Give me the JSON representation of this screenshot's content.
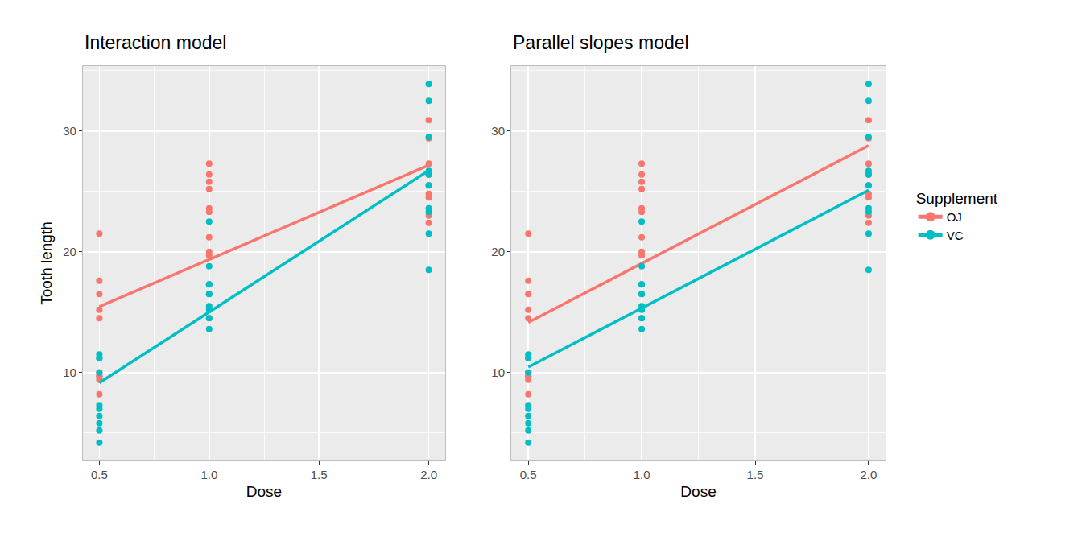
{
  "chart_data": [
    {
      "type": "scatter",
      "title": "Interaction model",
      "x_label": "Dose",
      "y_label": "Tooth length",
      "legend_title": "Supplement",
      "grid": true,
      "marker": "circle",
      "line_style": "solid",
      "xlim": [
        0.425,
        2.075
      ],
      "xticks": [
        {
          "value": 0.5,
          "label": "0.5"
        },
        {
          "value": 1.0,
          "label": "1.0"
        },
        {
          "value": 1.5,
          "label": "1.5"
        },
        {
          "value": 2.0,
          "label": "2.0"
        }
      ],
      "ylim": [
        2.715,
        35.385
      ],
      "yticks": [
        10,
        20,
        30
      ],
      "series": [
        {
          "name": "OJ",
          "color": "#F8766D",
          "x": [
            0.5,
            0.5,
            0.5,
            0.5,
            0.5,
            0.5,
            0.5,
            0.5,
            0.5,
            0.5,
            1,
            1,
            1,
            1,
            1,
            1,
            1,
            1,
            1,
            1,
            2,
            2,
            2,
            2,
            2,
            2,
            2,
            2,
            2,
            2
          ],
          "values": [
            15.2,
            21.5,
            17.6,
            9.7,
            14.5,
            10,
            8.2,
            9.4,
            16.5,
            9.7,
            19.7,
            23.3,
            23.6,
            26.4,
            20,
            25.2,
            25.8,
            21.2,
            14.5,
            27.3,
            25.5,
            26.4,
            22.4,
            24.5,
            24.8,
            30.9,
            26.4,
            27.3,
            29.4,
            23
          ],
          "fit_x": [
            0.5,
            2
          ],
          "fit_values": [
            15.46,
            27.17
          ]
        },
        {
          "name": "VC",
          "color": "#00BFC4",
          "x": [
            0.5,
            0.5,
            0.5,
            0.5,
            0.5,
            0.5,
            0.5,
            0.5,
            0.5,
            0.5,
            1,
            1,
            1,
            1,
            1,
            1,
            1,
            1,
            1,
            1,
            2,
            2,
            2,
            2,
            2,
            2,
            2,
            2,
            2,
            2
          ],
          "values": [
            4.2,
            11.5,
            7.3,
            5.8,
            6.4,
            10,
            11.2,
            11.2,
            5.2,
            7,
            16.5,
            16.5,
            15.2,
            17.3,
            22.5,
            17.3,
            13.6,
            14.5,
            18.8,
            15.5,
            23.6,
            18.5,
            33.9,
            25.5,
            26.4,
            32.5,
            26.7,
            21.5,
            23.3,
            29.5
          ],
          "fit_x": [
            0.5,
            2
          ],
          "fit_values": [
            9.15,
            26.73
          ]
        }
      ]
    },
    {
      "type": "scatter",
      "title": "Parallel slopes model",
      "x_label": "Dose",
      "grid": true,
      "marker": "circle",
      "line_style": "solid",
      "xlim": [
        0.425,
        2.075
      ],
      "xticks": [
        {
          "value": 0.5,
          "label": "0.5"
        },
        {
          "value": 1.0,
          "label": "1.0"
        },
        {
          "value": 1.5,
          "label": "1.5"
        },
        {
          "value": 2.0,
          "label": "2.0"
        }
      ],
      "ylim": [
        2.715,
        35.385
      ],
      "yticks": [
        10,
        20,
        30
      ],
      "series": [
        {
          "name": "OJ",
          "color": "#F8766D",
          "x": [
            0.5,
            0.5,
            0.5,
            0.5,
            0.5,
            0.5,
            0.5,
            0.5,
            0.5,
            0.5,
            1,
            1,
            1,
            1,
            1,
            1,
            1,
            1,
            1,
            1,
            2,
            2,
            2,
            2,
            2,
            2,
            2,
            2,
            2,
            2
          ],
          "values": [
            15.2,
            21.5,
            17.6,
            9.7,
            14.5,
            10,
            8.2,
            9.4,
            16.5,
            9.7,
            19.7,
            23.3,
            23.6,
            26.4,
            20,
            25.2,
            25.8,
            21.2,
            14.5,
            27.3,
            25.5,
            26.4,
            22.4,
            24.5,
            24.8,
            30.9,
            26.4,
            27.3,
            29.4,
            23
          ],
          "fit_x": [
            0.5,
            2
          ],
          "fit_values": [
            14.15,
            28.8
          ]
        },
        {
          "name": "VC",
          "color": "#00BFC4",
          "x": [
            0.5,
            0.5,
            0.5,
            0.5,
            0.5,
            0.5,
            0.5,
            0.5,
            0.5,
            0.5,
            1,
            1,
            1,
            1,
            1,
            1,
            1,
            1,
            1,
            1,
            2,
            2,
            2,
            2,
            2,
            2,
            2,
            2,
            2,
            2
          ],
          "values": [
            4.2,
            11.5,
            7.3,
            5.8,
            6.4,
            10,
            11.2,
            11.2,
            5.2,
            7,
            16.5,
            16.5,
            15.2,
            17.3,
            22.5,
            17.3,
            13.6,
            14.5,
            18.8,
            15.5,
            23.6,
            18.5,
            33.9,
            25.5,
            26.4,
            32.5,
            26.7,
            21.5,
            23.3,
            29.5
          ],
          "fit_x": [
            0.5,
            2
          ],
          "fit_values": [
            10.45,
            25.1
          ]
        }
      ]
    }
  ]
}
